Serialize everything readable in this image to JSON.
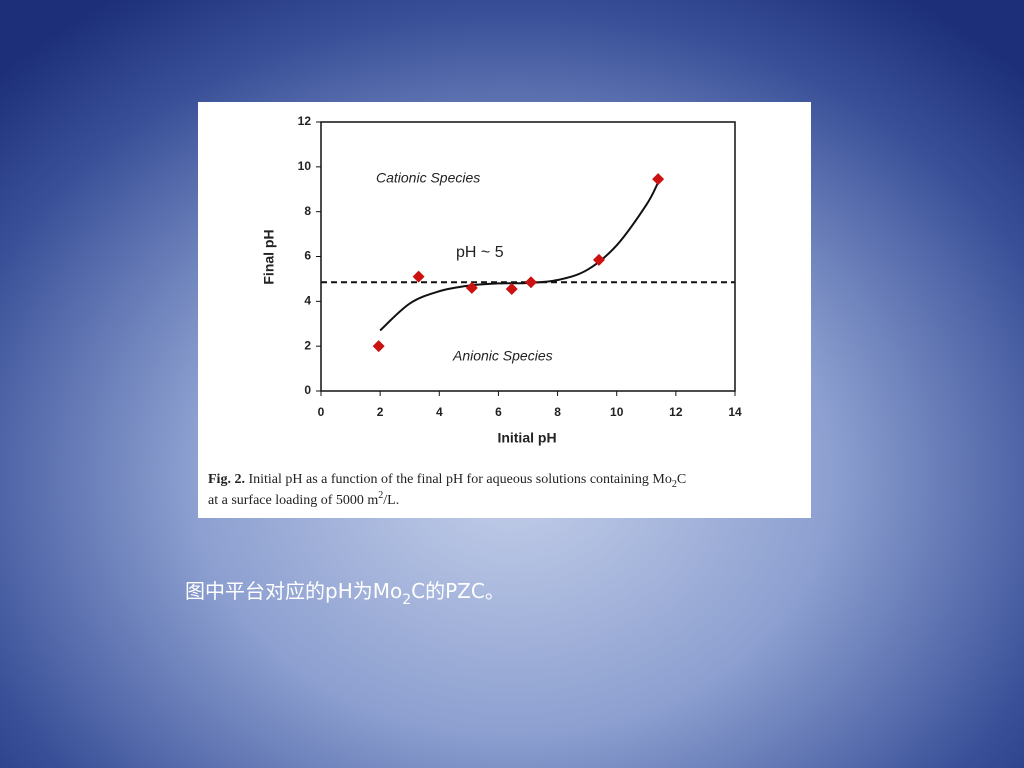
{
  "chart_data": {
    "type": "scatter",
    "xlabel": "Initial pH",
    "ylabel": "Final pH",
    "xlim": [
      0,
      14
    ],
    "ylim": [
      0,
      12
    ],
    "xticks": [
      0,
      2,
      4,
      6,
      8,
      10,
      12,
      14
    ],
    "yticks": [
      0,
      2,
      4,
      6,
      8,
      10,
      12
    ],
    "grid": false,
    "points": {
      "color": "#cc1111",
      "x": [
        1.95,
        3.3,
        5.1,
        6.45,
        7.1,
        9.4,
        11.4
      ],
      "y": [
        2.0,
        5.1,
        4.6,
        4.55,
        4.85,
        5.85,
        9.45
      ]
    },
    "fit": {
      "color": "#111111",
      "x": [
        2,
        3,
        4,
        5,
        6,
        7,
        8,
        9,
        10,
        11,
        11.4
      ],
      "y": [
        2.7,
        3.9,
        4.45,
        4.7,
        4.8,
        4.82,
        4.95,
        5.4,
        6.5,
        8.3,
        9.3
      ]
    },
    "reference_line": {
      "y": 4.85,
      "dashed": true
    },
    "annotations": [
      "Cationic Species",
      "pH ~ 5",
      "Anionic Species"
    ],
    "caption": {
      "line1": {
        "label": "Fig. 2.",
        "text": "Initial pH as a function of the final pH for aqueous solutions containing Mo",
        "sub": "2",
        "after": "C"
      },
      "line2": {
        "text": "at a surface loading of 5000 m",
        "sup": "2",
        "after": "/L."
      }
    }
  },
  "slide_text": {
    "text": "图中平台对应的pH为Mo",
    "sub": "2",
    "after": "C的PZC。"
  }
}
